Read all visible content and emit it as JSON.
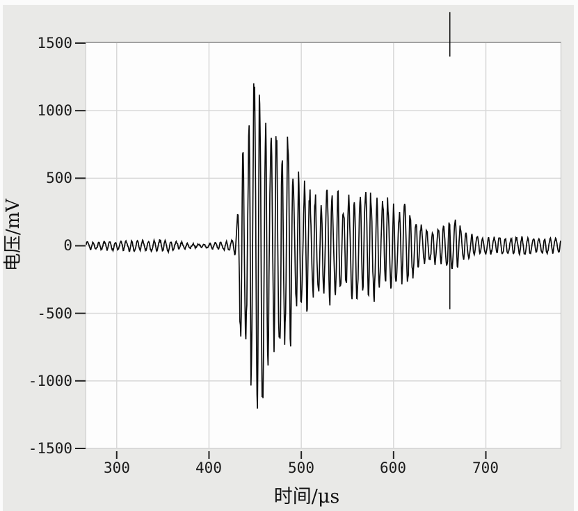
{
  "figure": {
    "background": "#e9e9e7",
    "plot_background": "#fdfdfd",
    "grid_color": "#d8d8d8",
    "tick_color": "#222222",
    "trace_color": "#0d0d0d",
    "cursor_color": "#000000"
  },
  "chart_data": {
    "type": "line",
    "title": "",
    "xlabel": "时间/μs",
    "ylabel": "电压/mV",
    "xlim": [
      267,
      781
    ],
    "ylim": [
      -1500,
      1500
    ],
    "xticks": [
      300,
      400,
      500,
      600,
      700
    ],
    "yticks": [
      1500,
      1000,
      500,
      0,
      -500,
      -1000,
      -1500
    ],
    "xtick_labels": [
      "300",
      "400",
      "500",
      "600",
      "700"
    ],
    "ytick_labels": [
      "1500",
      "1000",
      "500",
      "0",
      "-500",
      "-1000",
      "-1500"
    ],
    "grid": true,
    "legend": null,
    "signal": {
      "description": "burst waveform: baseline noise then sharp onset at ~430 us, peak ~±1380 mV at ~450 us, oscillatory decay with secondary packets near 480, 575 and 665 us, tail ~±60 mV",
      "carrier_period_us": 6.2,
      "noise_mv": 12,
      "seed": 20240513,
      "envelope_mv": [
        [
          267,
          28
        ],
        [
          280,
          30
        ],
        [
          290,
          34
        ],
        [
          300,
          30
        ],
        [
          310,
          38
        ],
        [
          320,
          44
        ],
        [
          330,
          36
        ],
        [
          340,
          44
        ],
        [
          350,
          46
        ],
        [
          358,
          40
        ],
        [
          366,
          32
        ],
        [
          374,
          22
        ],
        [
          383,
          14
        ],
        [
          391,
          12
        ],
        [
          399,
          18
        ],
        [
          407,
          26
        ],
        [
          414,
          32
        ],
        [
          421,
          38
        ],
        [
          427,
          48
        ],
        [
          430,
          140
        ],
        [
          432,
          430
        ],
        [
          434,
          720
        ],
        [
          437,
          800
        ],
        [
          439,
          640
        ],
        [
          442,
          860
        ],
        [
          445,
          1060
        ],
        [
          448,
          1310
        ],
        [
          451,
          1390
        ],
        [
          454,
          1260
        ],
        [
          457,
          1370
        ],
        [
          460,
          960
        ],
        [
          463,
          1060
        ],
        [
          466,
          840
        ],
        [
          469,
          730
        ],
        [
          472,
          970
        ],
        [
          475,
          830
        ],
        [
          478,
          970
        ],
        [
          481,
          560
        ],
        [
          484,
          990
        ],
        [
          487,
          940
        ],
        [
          490,
          630
        ],
        [
          493,
          480
        ],
        [
          497,
          550
        ],
        [
          501,
          440
        ],
        [
          506,
          500
        ],
        [
          511,
          395
        ],
        [
          516,
          435
        ],
        [
          521,
          315
        ],
        [
          526,
          435
        ],
        [
          531,
          455
        ],
        [
          536,
          365
        ],
        [
          541,
          430
        ],
        [
          546,
          295
        ],
        [
          551,
          365
        ],
        [
          556,
          415
        ],
        [
          561,
          435
        ],
        [
          566,
          365
        ],
        [
          571,
          435
        ],
        [
          576,
          415
        ],
        [
          581,
          395
        ],
        [
          586,
          315
        ],
        [
          591,
          345
        ],
        [
          596,
          355
        ],
        [
          601,
          315
        ],
        [
          606,
          265
        ],
        [
          611,
          330
        ],
        [
          616,
          290
        ],
        [
          620,
          255
        ],
        [
          624,
          215
        ],
        [
          628,
          165
        ],
        [
          632,
          145
        ],
        [
          636,
          128
        ],
        [
          641,
          118
        ],
        [
          646,
          138
        ],
        [
          651,
          128
        ],
        [
          656,
          168
        ],
        [
          661,
          195
        ],
        [
          666,
          215
        ],
        [
          669,
          180
        ],
        [
          673,
          140
        ],
        [
          677,
          108
        ],
        [
          681,
          88
        ],
        [
          686,
          78
        ],
        [
          691,
          70
        ],
        [
          701,
          64
        ],
        [
          711,
          60
        ],
        [
          716,
          74
        ],
        [
          721,
          64
        ],
        [
          731,
          60
        ],
        [
          741,
          70
        ],
        [
          751,
          60
        ],
        [
          761,
          54
        ],
        [
          771,
          58
        ],
        [
          781,
          54
        ]
      ]
    },
    "cursor": {
      "time_us": 661,
      "segments_mv": [
        [
          1730,
          1400
        ],
        [
          160,
          -470
        ]
      ]
    }
  }
}
